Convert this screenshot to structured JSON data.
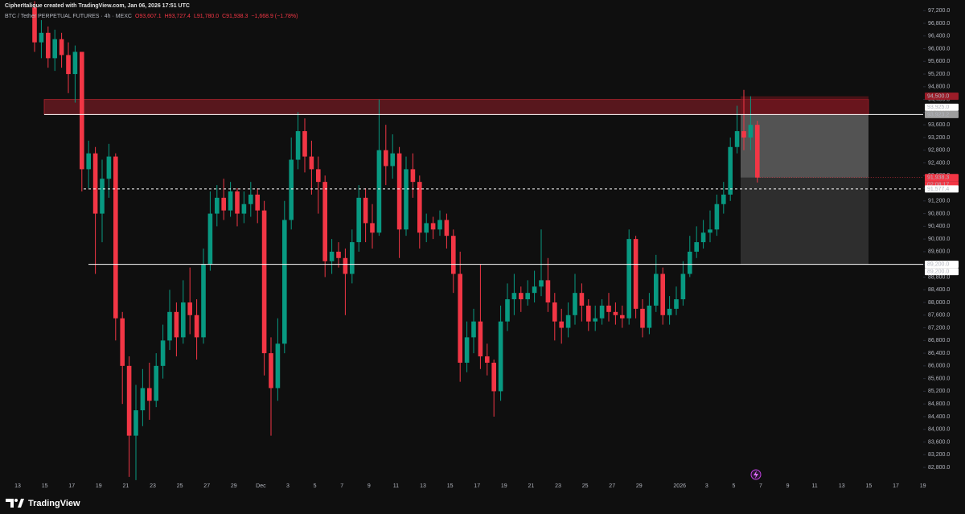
{
  "chart_data": {
    "type": "candlestick",
    "header": "CipherItalique created with TradingView.com, Jan 06, 2026 17:51 UTC",
    "symbol": "BTC / Tether PERPETUAL FUTURES · 4h · MEXC",
    "ohlc": [
      "O93,607.1",
      "H93,727.4",
      "L91,780.0",
      "C91,938.3",
      "−1,668.9 (−1.78%)"
    ],
    "colors": {
      "up": "#089981",
      "down": "#f23645"
    },
    "open": [
      97300,
      96200,
      96500,
      95700,
      96300,
      95800,
      95200,
      95900,
      92200,
      92700,
      90800,
      91900,
      92600,
      87500,
      86000,
      83800,
      84600,
      85300,
      84900,
      86000,
      86800,
      87700,
      86900,
      88000,
      87600,
      86900,
      89200,
      90800,
      91300,
      90900,
      91500,
      90800,
      91100,
      91400,
      90900,
      86400,
      85300,
      86700,
      90600,
      92500,
      93400,
      92600,
      92200,
      91800,
      89300,
      89600,
      89400,
      88900,
      89900,
      91300,
      90500,
      90200,
      92800,
      92300,
      92700,
      90300,
      92200,
      91800,
      90200,
      90500,
      90300,
      90600,
      90100,
      88900,
      86100,
      86900,
      87400,
      86300,
      86100,
      85200,
      87400,
      88100,
      88300,
      88100,
      88300,
      88500,
      88700,
      88000,
      87400,
      87200,
      87600,
      88300,
      87900,
      87400,
      87500,
      87900,
      87700,
      87600,
      87500,
      90000,
      87800,
      87200,
      87900,
      88900,
      87600,
      87800,
      88100,
      88900,
      89600,
      89900,
      90200,
      90300,
      91100,
      91400,
      92900,
      93400,
      93200,
      93600
    ],
    "high": [
      97500,
      96900,
      96700,
      96600,
      96500,
      96200,
      96100,
      95900,
      93100,
      92900,
      92500,
      93000,
      92700,
      87700,
      86300,
      85400,
      85900,
      86100,
      86400,
      87300,
      88400,
      88000,
      88700,
      89100,
      88100,
      89700,
      91500,
      91700,
      91900,
      91800,
      91600,
      91500,
      91800,
      91600,
      91200,
      86900,
      87500,
      91200,
      93200,
      94000,
      93800,
      93100,
      92600,
      92000,
      90000,
      89900,
      89700,
      90300,
      91700,
      91600,
      91100,
      94400,
      93600,
      93300,
      92900,
      92600,
      92700,
      92000,
      90800,
      90700,
      90900,
      90800,
      90300,
      89600,
      87400,
      87800,
      89200,
      86700,
      86200,
      87900,
      88600,
      88900,
      88500,
      88700,
      89000,
      90300,
      89400,
      88300,
      87800,
      88000,
      88900,
      88600,
      88100,
      87900,
      88100,
      88300,
      88000,
      87900,
      90300,
      90100,
      88100,
      88300,
      89500,
      89100,
      88200,
      88500,
      89300,
      90100,
      90400,
      90600,
      90900,
      91400,
      91800,
      93200,
      94200,
      94700,
      94500,
      93727.4
    ],
    "low": [
      95900,
      95700,
      95400,
      95300,
      95400,
      94600,
      94300,
      91500,
      91600,
      88900,
      89900,
      91300,
      86800,
      84800,
      82500,
      82400,
      84100,
      84300,
      84700,
      85600,
      86500,
      86300,
      86700,
      87000,
      86200,
      86700,
      89000,
      90400,
      90600,
      90700,
      90400,
      90500,
      90700,
      90500,
      85700,
      83800,
      84900,
      86400,
      90300,
      92200,
      92100,
      91400,
      90800,
      88800,
      88900,
      89100,
      87600,
      88600,
      89600,
      89900,
      89700,
      90100,
      91700,
      91900,
      89400,
      90100,
      91300,
      89700,
      89900,
      90000,
      90100,
      89700,
      88300,
      85500,
      85800,
      86400,
      85900,
      85700,
      84400,
      84900,
      87100,
      87600,
      87700,
      87900,
      88000,
      88200,
      87700,
      86800,
      86700,
      86900,
      87300,
      87400,
      87100,
      87100,
      87300,
      87400,
      87300,
      87200,
      87300,
      87500,
      86900,
      87000,
      87700,
      87300,
      87300,
      87600,
      87900,
      88800,
      89400,
      89700,
      89900,
      90100,
      90800,
      91200,
      92700,
      92800,
      92800,
      91780
    ],
    "close": [
      96200,
      96500,
      95700,
      96300,
      95800,
      95200,
      95900,
      92200,
      92700,
      90800,
      91900,
      92600,
      87500,
      86000,
      83800,
      84600,
      85300,
      84900,
      86000,
      86800,
      87700,
      86900,
      88000,
      87600,
      86900,
      89200,
      90800,
      91300,
      90900,
      91500,
      90800,
      91100,
      91400,
      90900,
      86400,
      85300,
      86700,
      90600,
      92500,
      93400,
      92600,
      92200,
      91800,
      89300,
      89600,
      89400,
      88900,
      89900,
      91300,
      90500,
      90200,
      92800,
      92300,
      92700,
      90300,
      92200,
      91800,
      90200,
      90500,
      90300,
      90600,
      90100,
      88900,
      86100,
      86900,
      87400,
      86300,
      86100,
      85200,
      87400,
      88100,
      88300,
      88100,
      88300,
      88500,
      88700,
      88000,
      87400,
      87200,
      87600,
      88300,
      87900,
      87400,
      87500,
      87900,
      87700,
      87600,
      87500,
      90000,
      87800,
      87200,
      87900,
      88900,
      87600,
      87800,
      88100,
      88900,
      89600,
      89900,
      90200,
      90300,
      91100,
      91400,
      92900,
      93400,
      93200,
      93600,
      91938.3
    ],
    "ylim": [
      82370,
      97535
    ],
    "yticks": [
      {
        "value": 82800,
        "label": "82,800.0"
      },
      {
        "value": 83200,
        "label": "83,200.0"
      },
      {
        "value": 83600,
        "label": "83,600.0"
      },
      {
        "value": 84000,
        "label": "84,000.0"
      },
      {
        "value": 84400,
        "label": "84,400.0"
      },
      {
        "value": 84800,
        "label": "84,800.0"
      },
      {
        "value": 85200,
        "label": "85,200.0"
      },
      {
        "value": 85600,
        "label": "85,600.0"
      },
      {
        "value": 86000,
        "label": "86,000.0"
      },
      {
        "value": 86400,
        "label": "86,400.0"
      },
      {
        "value": 86800,
        "label": "86,800.0"
      },
      {
        "value": 87200,
        "label": "87,200.0"
      },
      {
        "value": 87600,
        "label": "87,600.0"
      },
      {
        "value": 88000,
        "label": "88,000.0"
      },
      {
        "value": 88400,
        "label": "88,400.0"
      },
      {
        "value": 88800,
        "label": "88,800.0"
      },
      {
        "value": 89200,
        "label": "89,200.0"
      },
      {
        "value": 89600,
        "label": "89,600.0"
      },
      {
        "value": 90000,
        "label": "90,000.0"
      },
      {
        "value": 90400,
        "label": "90,400.0"
      },
      {
        "value": 90800,
        "label": "90,800.0"
      },
      {
        "value": 91200,
        "label": "91,200.0"
      },
      {
        "value": 91600,
        "label": "91,600.0"
      },
      {
        "value": 92000,
        "label": "92,000.0"
      },
      {
        "value": 92400,
        "label": "92,400.0"
      },
      {
        "value": 92800,
        "label": "92,800.0"
      },
      {
        "value": 93200,
        "label": "93,200.0"
      },
      {
        "value": 93600,
        "label": "93,600.0"
      },
      {
        "value": 94000,
        "label": "94,000.0"
      },
      {
        "value": 94400,
        "label": "94,400.0"
      },
      {
        "value": 94800,
        "label": "94,800.0"
      },
      {
        "value": 95200,
        "label": "95,200.0"
      },
      {
        "value": 95600,
        "label": "95,600.0"
      },
      {
        "value": 96000,
        "label": "96,000.0"
      },
      {
        "value": 96400,
        "label": "96,400.0"
      },
      {
        "value": 96800,
        "label": "96,800.0"
      },
      {
        "value": 97200,
        "label": "97,200.0"
      }
    ],
    "xtick_labels": [
      "13",
      "15",
      "17",
      "19",
      "21",
      "23",
      "25",
      "27",
      "29",
      "Dec",
      "3",
      "5",
      "7",
      "9",
      "11",
      "13",
      "15",
      "17",
      "19",
      "21",
      "23",
      "25",
      "27",
      "29",
      "2026",
      "3",
      "5",
      "7",
      "9",
      "11",
      "13",
      "15",
      "17",
      "19"
    ],
    "zone": {
      "top": 94400,
      "bottom": 93925
    },
    "position": {
      "stop": 94500,
      "entry": 93925,
      "target": 89200
    },
    "lines": [
      {
        "value": 93925,
        "dash": false
      },
      {
        "value": 91577.4,
        "dash": true
      },
      {
        "value": 89200,
        "dash": false
      }
    ],
    "price_labels": [
      {
        "value": 94500,
        "label": "94,500.0",
        "bg": "#9b1c28",
        "fg": "#ffffff"
      },
      {
        "value": 93925,
        "label": "93,925.0",
        "bg": "#ffffff",
        "fg": "#000000"
      },
      {
        "value": 93923.2,
        "label": "93,923.2",
        "bg": "#9e9e9e",
        "fg": "#000000"
      },
      {
        "value": 91938.3,
        "label": "91,938.3",
        "bg": "#f23645",
        "fg": "#ffffff"
      },
      {
        "value": 91577.4,
        "label": "91,577.4",
        "bg": "#ffffff",
        "fg": "#000000"
      },
      {
        "value": 89200,
        "label": "89,200.0",
        "bg": "#ffffff",
        "fg": "#000000"
      },
      {
        "value": 89200,
        "label": "89,200.0",
        "bg": "#ffffff",
        "fg": "#000000"
      }
    ],
    "countdown": "02:08:17",
    "brand": "TradingView"
  }
}
